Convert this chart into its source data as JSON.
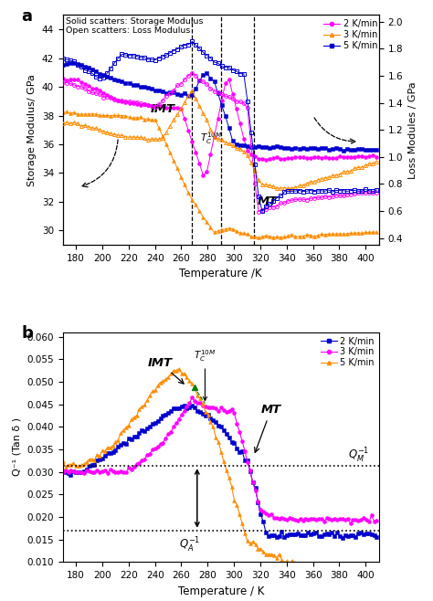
{
  "panel_a": {
    "xlabel": "Temperature /K",
    "ylabel_left": "Storage Modulus/ GPa",
    "ylabel_right": "Loss Modules / GPa",
    "xlim": [
      170,
      410
    ],
    "ylim_left": [
      29.0,
      45.0
    ],
    "ylim_right": [
      0.35,
      2.05
    ],
    "xticks": [
      180,
      200,
      220,
      240,
      260,
      280,
      300,
      320,
      340,
      360,
      380,
      400
    ],
    "yticks_left": [
      30,
      32,
      34,
      36,
      38,
      40,
      42,
      44
    ],
    "yticks_right": [
      0.4,
      0.6,
      0.8,
      1.0,
      1.2,
      1.4,
      1.6,
      1.8,
      2.0
    ],
    "vline1": 268,
    "vline2": 290,
    "vline3": 315,
    "colors": {
      "2kmin": "#FF00FF",
      "3kmin": "#FF8C00",
      "5kmin": "#0000CD"
    }
  },
  "panel_b": {
    "xlabel": "Temperature / K",
    "ylabel": "Q⁻¹ (Tan δ )",
    "xlim": [
      170,
      410
    ],
    "ylim": [
      0.01,
      0.061
    ],
    "xticks": [
      180,
      200,
      220,
      240,
      260,
      280,
      300,
      320,
      340,
      360,
      380,
      400
    ],
    "yticks": [
      0.01,
      0.015,
      0.02,
      0.025,
      0.03,
      0.035,
      0.04,
      0.045,
      0.05,
      0.055,
      0.06
    ],
    "QM_level": 0.0313,
    "QA_level": 0.017,
    "colors": {
      "2kmin": "#0000CD",
      "3kmin": "#FF00FF",
      "5kmin": "#FF8C00"
    }
  },
  "bg_color": "#ffffff"
}
